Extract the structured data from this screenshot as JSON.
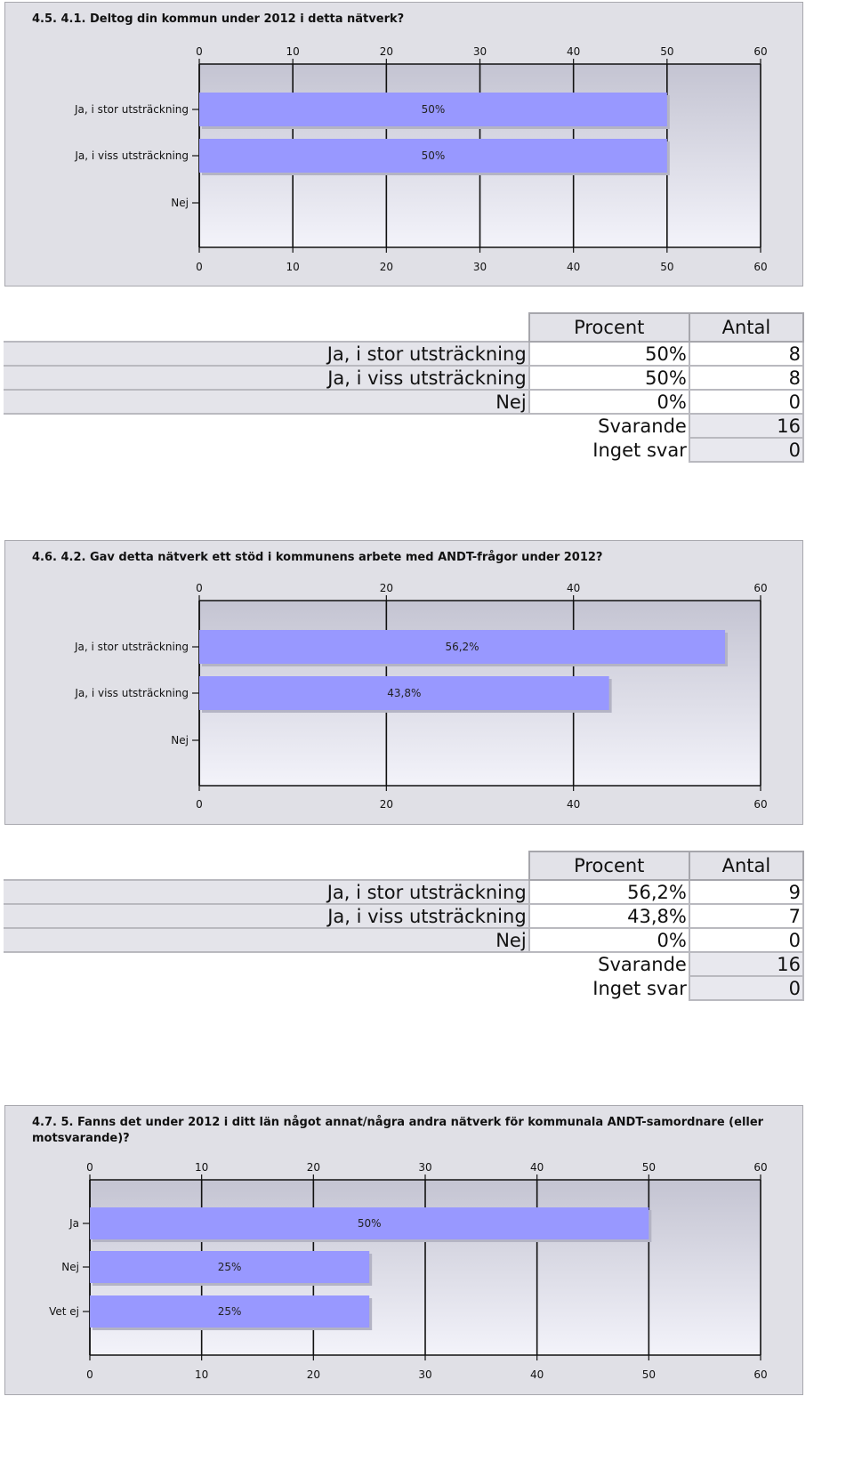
{
  "colors": {
    "bar": "#9898ff",
    "plot_top": "#c4c4d2",
    "plot_bottom": "#f3f3fa",
    "panel": "#e0e0e6"
  },
  "chart_data": [
    {
      "type": "bar",
      "orientation": "horizontal",
      "title": "4.5. 4.1. Deltog din kommun under 2012 i detta nätverk?",
      "categories": [
        "Ja, i stor utsträckning",
        "Ja, i viss utsträckning",
        "Nej"
      ],
      "values": [
        50,
        50,
        0
      ],
      "data_labels": [
        "50%",
        "50%",
        ""
      ],
      "xlim": [
        0,
        60
      ],
      "ticks": [
        0,
        10,
        20,
        30,
        40,
        50,
        60
      ],
      "grid": true
    },
    {
      "type": "bar",
      "orientation": "horizontal",
      "title": "4.6. 4.2. Gav detta nätverk ett stöd i kommunens arbete med ANDT-frågor under 2012?",
      "categories": [
        "Ja, i stor utsträckning",
        "Ja, i viss utsträckning",
        "Nej"
      ],
      "values": [
        56.2,
        43.8,
        0
      ],
      "data_labels": [
        "56,2%",
        "43,8%",
        ""
      ],
      "xlim": [
        0,
        60
      ],
      "ticks": [
        0,
        20,
        40,
        60
      ],
      "grid": true
    },
    {
      "type": "bar",
      "orientation": "horizontal",
      "title": "4.7. 5. Fanns det under 2012 i ditt län något annat/några andra nätverk för kommunala ANDT-samordnare (eller motsvarande)?",
      "categories": [
        "Ja",
        "Nej",
        "Vet ej"
      ],
      "values": [
        50,
        25,
        25
      ],
      "data_labels": [
        "50%",
        "25%",
        "25%"
      ],
      "xlim": [
        0,
        60
      ],
      "ticks": [
        0,
        10,
        20,
        30,
        40,
        50,
        60
      ],
      "grid": true
    }
  ],
  "tables": [
    {
      "headers": [
        "Procent",
        "Antal"
      ],
      "rows": [
        {
          "label": "Ja, i stor utsträckning",
          "pct": "50%",
          "count": "8"
        },
        {
          "label": "Ja, i viss utsträckning",
          "pct": "50%",
          "count": "8"
        },
        {
          "label": "Nej",
          "pct": "0%",
          "count": "0"
        }
      ],
      "summary": [
        {
          "label": "Svarande",
          "value": "16"
        },
        {
          "label": "Inget svar",
          "value": "0"
        }
      ]
    },
    {
      "headers": [
        "Procent",
        "Antal"
      ],
      "rows": [
        {
          "label": "Ja, i stor utsträckning",
          "pct": "56,2%",
          "count": "9"
        },
        {
          "label": "Ja, i viss utsträckning",
          "pct": "43,8%",
          "count": "7"
        },
        {
          "label": "Nej",
          "pct": "0%",
          "count": "0"
        }
      ],
      "summary": [
        {
          "label": "Svarande",
          "value": "16"
        },
        {
          "label": "Inget svar",
          "value": "0"
        }
      ]
    }
  ]
}
